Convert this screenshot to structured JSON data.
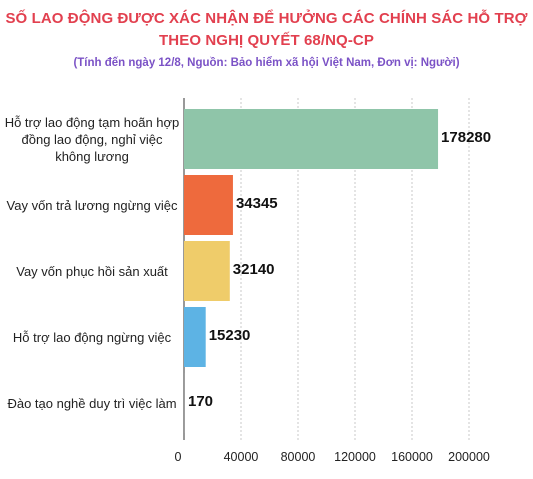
{
  "chart_data": {
    "type": "bar",
    "orientation": "horizontal",
    "title": "SỐ LAO ĐỘNG ĐƯỢC XÁC NHẬN ĐỂ HƯỞNG CÁC CHÍNH SÁC HỖ TRỢ THEO NGHỊ QUYẾT 68/NQ-CP",
    "subtitle": "(Tính đến ngày 12/8, Nguồn: Bảo hiểm xã hội Việt Nam, Đơn vị: Người)",
    "categories": [
      "Hỗ trợ lao động tạm hoãn hợp đồng lao động, nghỉ việc không lương",
      "Vay vốn trả lương ngừng việc",
      "Vay vốn phục hồi sản xuất",
      "Hỗ trợ lao động ngừng việc",
      "Đào tạo nghề duy trì việc làm"
    ],
    "values": [
      178280,
      34345,
      32140,
      15230,
      170
    ],
    "value_labels": [
      "178280",
      "34345",
      "32140",
      "15230",
      "170"
    ],
    "colors": [
      "#8fc5a9",
      "#ee6a3d",
      "#efcc6a",
      "#5db3e4",
      "#9e9e9e"
    ],
    "xlim": [
      0,
      200000
    ],
    "xticks": [
      0,
      40000,
      80000,
      120000,
      160000,
      200000
    ],
    "xtick_labels": [
      "0",
      "40000",
      "80000",
      "120000",
      "160000",
      "200000"
    ],
    "grid": true
  }
}
